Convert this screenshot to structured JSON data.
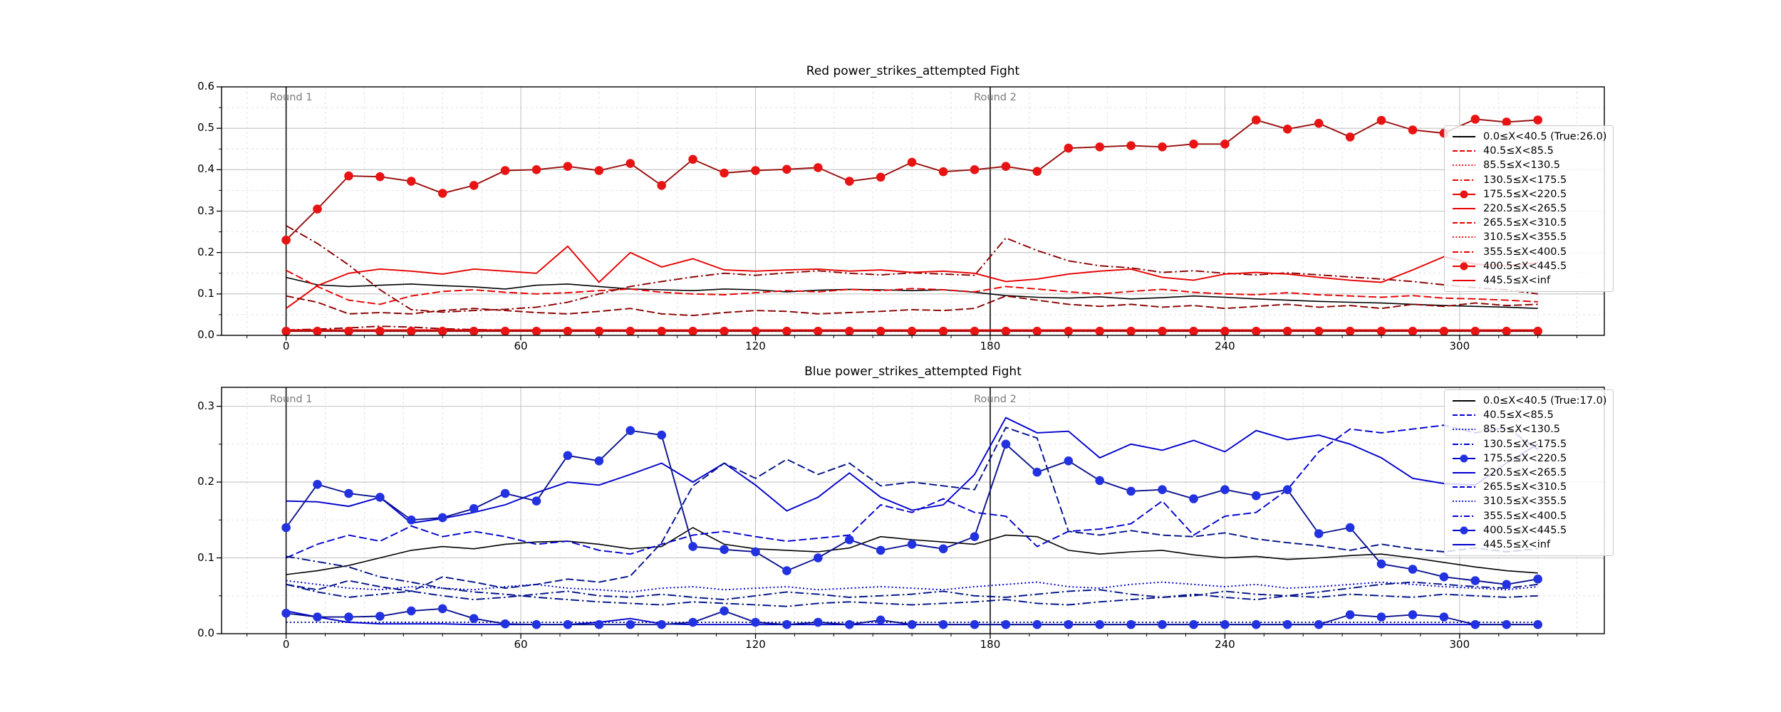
{
  "page": {
    "background": "#ffffff"
  },
  "chart_data": [
    {
      "type": "line",
      "title": "Red power_strikes_attempted Fight",
      "xlabel": "",
      "ylabel": "",
      "xlim": [
        -16.5,
        337
      ],
      "ylim": [
        0,
        0.6
      ],
      "x_ticks": [
        "0",
        "60",
        "120",
        "180",
        "240",
        "300"
      ],
      "x_tick_vals": [
        0,
        60,
        120,
        180,
        240,
        300
      ],
      "y_ticks": [
        "0.0",
        "0.1",
        "0.2",
        "0.3",
        "0.4",
        "0.5",
        "0.6"
      ],
      "y_tick_vals": [
        0,
        0.1,
        0.2,
        0.3,
        0.4,
        0.5,
        0.6
      ],
      "grid": true,
      "legend_position": "upper right",
      "round_labels": [
        "Round 1",
        "Round 2"
      ],
      "round_x": [
        0,
        180
      ],
      "x_start": 0,
      "x_step": 8,
      "colors": {
        "black": "#000000",
        "bright": "#e60000",
        "dark": "#8b0000",
        "marker_line": "#970d0d",
        "marker_fill": "#e81414",
        "round_line": "#000000",
        "round_text": "#7a7a7a"
      },
      "series": [
        {
          "label": "0.0≤X<40.5 (True:26.0)",
          "style": "solid",
          "tone": "black",
          "marker": false,
          "values": [
            0.14,
            0.122,
            0.118,
            0.121,
            0.124,
            0.12,
            0.117,
            0.112,
            0.121,
            0.124,
            0.118,
            0.112,
            0.11,
            0.108,
            0.112,
            0.11,
            0.105,
            0.109,
            0.111,
            0.11,
            0.108,
            0.11,
            0.104,
            0.096,
            0.092,
            0.09,
            0.093,
            0.088,
            0.091,
            0.095,
            0.092,
            0.088,
            0.085,
            0.082,
            0.08,
            0.078,
            0.075,
            0.072,
            0.07,
            0.068,
            0.065
          ]
        },
        {
          "label": "40.5≤X<85.5",
          "style": "dashed",
          "tone": "bright",
          "marker": false,
          "values": [
            0.157,
            0.118,
            0.085,
            0.075,
            0.095,
            0.106,
            0.11,
            0.104,
            0.1,
            0.103,
            0.108,
            0.112,
            0.104,
            0.1,
            0.098,
            0.103,
            0.108,
            0.105,
            0.111,
            0.108,
            0.113,
            0.11,
            0.105,
            0.118,
            0.112,
            0.105,
            0.1,
            0.106,
            0.111,
            0.104,
            0.1,
            0.098,
            0.103,
            0.098,
            0.095,
            0.092,
            0.096,
            0.09,
            0.088,
            0.085,
            0.081
          ]
        },
        {
          "label": "85.5≤X<130.5",
          "style": "dotted",
          "tone": "bright",
          "marker": false,
          "flat": 0.012,
          "n": 41
        },
        {
          "label": "130.5≤X<175.5",
          "style": "dashdot",
          "tone": "dark",
          "marker": false,
          "values": [
            0.265,
            0.222,
            0.17,
            0.11,
            0.062,
            0.056,
            0.06,
            0.063,
            0.068,
            0.08,
            0.1,
            0.118,
            0.13,
            0.141,
            0.15,
            0.145,
            0.151,
            0.156,
            0.15,
            0.146,
            0.151,
            0.148,
            0.145,
            0.235,
            0.205,
            0.18,
            0.168,
            0.163,
            0.152,
            0.156,
            0.15,
            0.146,
            0.151,
            0.146,
            0.141,
            0.136,
            0.13,
            0.122,
            0.115,
            0.11,
            0.1
          ]
        },
        {
          "label": "175.5≤X<220.5",
          "style": "solid",
          "tone": "marker",
          "marker": true,
          "values": [
            0.23,
            0.305,
            0.385,
            0.383,
            0.372,
            0.343,
            0.362,
            0.398,
            0.4,
            0.408,
            0.398,
            0.415,
            0.362,
            0.425,
            0.392,
            0.398,
            0.401,
            0.405,
            0.372,
            0.382,
            0.418,
            0.395,
            0.4,
            0.408,
            0.396,
            0.452,
            0.455,
            0.458,
            0.455,
            0.462,
            0.462,
            0.52,
            0.498,
            0.512,
            0.479,
            0.519,
            0.496,
            0.488,
            0.522,
            0.515,
            0.52
          ]
        },
        {
          "label": "220.5≤X<265.5",
          "style": "solid",
          "tone": "bright",
          "marker": false,
          "values": [
            0.065,
            0.12,
            0.15,
            0.16,
            0.155,
            0.148,
            0.16,
            0.155,
            0.15,
            0.215,
            0.128,
            0.2,
            0.165,
            0.185,
            0.158,
            0.155,
            0.158,
            0.16,
            0.155,
            0.158,
            0.152,
            0.155,
            0.15,
            0.13,
            0.136,
            0.148,
            0.155,
            0.16,
            0.14,
            0.133,
            0.148,
            0.152,
            0.148,
            0.14,
            0.133,
            0.128,
            0.158,
            0.19,
            0.172,
            0.168,
            0.175
          ]
        },
        {
          "label": "265.5≤X<310.5",
          "style": "dashed",
          "tone": "dark",
          "marker": false,
          "values": [
            0.095,
            0.08,
            0.052,
            0.055,
            0.052,
            0.06,
            0.065,
            0.06,
            0.055,
            0.052,
            0.058,
            0.065,
            0.052,
            0.048,
            0.055,
            0.06,
            0.058,
            0.052,
            0.055,
            0.058,
            0.062,
            0.06,
            0.065,
            0.095,
            0.085,
            0.075,
            0.07,
            0.075,
            0.068,
            0.072,
            0.065,
            0.07,
            0.075,
            0.068,
            0.072,
            0.065,
            0.075,
            0.07,
            0.078,
            0.072,
            0.075
          ]
        },
        {
          "label": "310.5≤X<355.5",
          "style": "dotted",
          "tone": "dark",
          "marker": false,
          "flat": 0.01,
          "n": 41
        },
        {
          "label": "355.5≤X<400.5",
          "style": "dashdot",
          "tone": "dark",
          "marker": false,
          "values": [
            0.013,
            0.015,
            0.018,
            0.022,
            0.02,
            0.016,
            0.014,
            0.013,
            0.013,
            0.013,
            0.013,
            0.013,
            0.013,
            0.013,
            0.013,
            0.013,
            0.013,
            0.013,
            0.013,
            0.013,
            0.013,
            0.013,
            0.013,
            0.013,
            0.013,
            0.013,
            0.013,
            0.013,
            0.013,
            0.013,
            0.013,
            0.013,
            0.013,
            0.013,
            0.013,
            0.013,
            0.013,
            0.013,
            0.013,
            0.013,
            0.013
          ]
        },
        {
          "label": "400.5≤X<445.5",
          "style": "solid",
          "tone": "marker",
          "marker": true,
          "flat": 0.01,
          "n": 41
        },
        {
          "label": "445.5≤X<inf",
          "style": "solid",
          "tone": "bright",
          "marker": false,
          "flat": 0.013,
          "n": 41
        }
      ]
    },
    {
      "type": "line",
      "title": "Blue power_strikes_attempted Fight",
      "xlabel": "",
      "ylabel": "",
      "xlim": [
        -16.5,
        337
      ],
      "ylim": [
        0,
        0.325
      ],
      "x_ticks": [
        "0",
        "60",
        "120",
        "180",
        "240",
        "300"
      ],
      "x_tick_vals": [
        0,
        60,
        120,
        180,
        240,
        300
      ],
      "y_ticks": [
        "0.0",
        "0.1",
        "0.2",
        "0.3"
      ],
      "y_tick_vals": [
        0,
        0.1,
        0.2,
        0.3
      ],
      "grid": true,
      "legend_position": "upper right",
      "round_labels": [
        "Round 1",
        "Round 2"
      ],
      "round_x": [
        0,
        180
      ],
      "x_start": 0,
      "x_step": 8,
      "colors": {
        "black": "#000000",
        "bright": "#0000cd",
        "dark": "#001188",
        "marker_line": "#0a128c",
        "marker_fill": "#2232e0",
        "round_line": "#000000",
        "round_text": "#7a7a7a"
      },
      "series": [
        {
          "label": "0.0≤X<40.5 (True:17.0)",
          "style": "solid",
          "tone": "black",
          "marker": false,
          "values": [
            0.078,
            0.083,
            0.09,
            0.1,
            0.11,
            0.115,
            0.112,
            0.118,
            0.121,
            0.122,
            0.118,
            0.112,
            0.115,
            0.14,
            0.118,
            0.112,
            0.11,
            0.108,
            0.113,
            0.128,
            0.124,
            0.121,
            0.118,
            0.13,
            0.128,
            0.11,
            0.105,
            0.108,
            0.11,
            0.104,
            0.1,
            0.102,
            0.098,
            0.1,
            0.103,
            0.105,
            0.1,
            0.094,
            0.088,
            0.083,
            0.08
          ]
        },
        {
          "label": "40.5≤X<85.5",
          "style": "dashed",
          "tone": "bright",
          "marker": false,
          "values": [
            0.1,
            0.118,
            0.13,
            0.122,
            0.142,
            0.128,
            0.135,
            0.128,
            0.118,
            0.122,
            0.11,
            0.105,
            0.118,
            0.13,
            0.135,
            0.128,
            0.122,
            0.126,
            0.13,
            0.17,
            0.16,
            0.178,
            0.16,
            0.155,
            0.115,
            0.135,
            0.138,
            0.145,
            0.175,
            0.13,
            0.155,
            0.16,
            0.19,
            0.24,
            0.27,
            0.265,
            0.27,
            0.275,
            0.265,
            0.272,
            0.243
          ]
        },
        {
          "label": "85.5≤X<130.5",
          "style": "dotted",
          "tone": "bright",
          "marker": false,
          "values": [
            0.07,
            0.065,
            0.06,
            0.058,
            0.062,
            0.06,
            0.058,
            0.062,
            0.065,
            0.06,
            0.058,
            0.055,
            0.06,
            0.062,
            0.058,
            0.06,
            0.062,
            0.058,
            0.06,
            0.062,
            0.06,
            0.058,
            0.062,
            0.065,
            0.068,
            0.062,
            0.06,
            0.065,
            0.068,
            0.065,
            0.062,
            0.065,
            0.06,
            0.062,
            0.065,
            0.068,
            0.065,
            0.062,
            0.06,
            0.058,
            0.062
          ]
        },
        {
          "label": "130.5≤X<175.5",
          "style": "dashdot",
          "tone": "dark",
          "marker": false,
          "values": [
            0.102,
            0.095,
            0.088,
            0.075,
            0.068,
            0.06,
            0.055,
            0.052,
            0.048,
            0.045,
            0.042,
            0.04,
            0.038,
            0.042,
            0.04,
            0.038,
            0.036,
            0.04,
            0.042,
            0.04,
            0.038,
            0.04,
            0.042,
            0.045,
            0.04,
            0.038,
            0.042,
            0.045,
            0.048,
            0.052,
            0.048,
            0.045,
            0.05,
            0.055,
            0.06,
            0.065,
            0.068,
            0.065,
            0.062,
            0.06,
            0.065
          ]
        },
        {
          "label": "175.5≤X<220.5",
          "style": "solid",
          "tone": "marker",
          "marker": true,
          "values": [
            0.14,
            0.197,
            0.185,
            0.18,
            0.15,
            0.153,
            0.165,
            0.185,
            0.175,
            0.235,
            0.228,
            0.268,
            0.262,
            0.115,
            0.111,
            0.108,
            0.083,
            0.1,
            0.124,
            0.11,
            0.118,
            0.112,
            0.128,
            0.25,
            0.213,
            0.228,
            0.202,
            0.188,
            0.19,
            0.178,
            0.19,
            0.182,
            0.19,
            0.132,
            0.14,
            0.092,
            0.085,
            0.075,
            0.07,
            0.065,
            0.072
          ]
        },
        {
          "label": "220.5≤X<265.5",
          "style": "solid",
          "tone": "bright",
          "marker": false,
          "values": [
            0.175,
            0.174,
            0.168,
            0.18,
            0.146,
            0.152,
            0.16,
            0.17,
            0.186,
            0.2,
            0.196,
            0.21,
            0.225,
            0.2,
            0.225,
            0.196,
            0.162,
            0.18,
            0.212,
            0.18,
            0.163,
            0.17,
            0.21,
            0.285,
            0.265,
            0.267,
            0.232,
            0.25,
            0.242,
            0.255,
            0.24,
            0.268,
            0.256,
            0.262,
            0.25,
            0.232,
            0.205,
            0.198,
            0.196,
            0.225,
            0.25
          ]
        },
        {
          "label": "265.5≤X<310.5",
          "style": "dashed",
          "tone": "dark",
          "marker": false,
          "values": [
            0.065,
            0.058,
            0.07,
            0.062,
            0.056,
            0.075,
            0.068,
            0.06,
            0.065,
            0.072,
            0.068,
            0.076,
            0.12,
            0.195,
            0.225,
            0.205,
            0.23,
            0.21,
            0.225,
            0.195,
            0.2,
            0.195,
            0.19,
            0.272,
            0.258,
            0.135,
            0.13,
            0.136,
            0.13,
            0.128,
            0.133,
            0.125,
            0.12,
            0.116,
            0.11,
            0.118,
            0.112,
            0.108,
            0.113,
            0.108,
            0.112
          ]
        },
        {
          "label": "310.5≤X<355.5",
          "style": "dotted",
          "tone": "dark",
          "marker": false,
          "flat": 0.015,
          "n": 41
        },
        {
          "label": "355.5≤X<400.5",
          "style": "dashdot",
          "tone": "dark",
          "marker": false,
          "values": [
            0.065,
            0.055,
            0.048,
            0.052,
            0.056,
            0.05,
            0.045,
            0.048,
            0.052,
            0.056,
            0.05,
            0.048,
            0.052,
            0.048,
            0.045,
            0.05,
            0.055,
            0.052,
            0.048,
            0.05,
            0.052,
            0.056,
            0.05,
            0.048,
            0.052,
            0.056,
            0.058,
            0.052,
            0.048,
            0.05,
            0.056,
            0.052,
            0.05,
            0.048,
            0.052,
            0.05,
            0.048,
            0.052,
            0.05,
            0.048,
            0.05
          ]
        },
        {
          "label": "400.5≤X<445.5",
          "style": "solid",
          "tone": "marker",
          "marker": true,
          "values": [
            0.027,
            0.022,
            0.022,
            0.023,
            0.03,
            0.033,
            0.02,
            0.013,
            0.012,
            0.012,
            0.012,
            0.012,
            0.012,
            0.015,
            0.03,
            0.015,
            0.012,
            0.015,
            0.012,
            0.018,
            0.012,
            0.012,
            0.012,
            0.012,
            0.012,
            0.012,
            0.012,
            0.012,
            0.012,
            0.012,
            0.012,
            0.012,
            0.012,
            0.012,
            0.025,
            0.022,
            0.025,
            0.022,
            0.012,
            0.012,
            0.012
          ]
        },
        {
          "label": "445.5≤X<inf",
          "style": "solid",
          "tone": "bright",
          "marker": false,
          "values": [
            0.03,
            0.022,
            0.015,
            0.013,
            0.013,
            0.013,
            0.012,
            0.012,
            0.012,
            0.012,
            0.015,
            0.02,
            0.013,
            0.012,
            0.012,
            0.012,
            0.012,
            0.012,
            0.012,
            0.012,
            0.012,
            0.012,
            0.012,
            0.012,
            0.012,
            0.012,
            0.012,
            0.012,
            0.012,
            0.012,
            0.012,
            0.012,
            0.012,
            0.012,
            0.012,
            0.012,
            0.012,
            0.012,
            0.012,
            0.012,
            0.012
          ]
        }
      ]
    }
  ]
}
